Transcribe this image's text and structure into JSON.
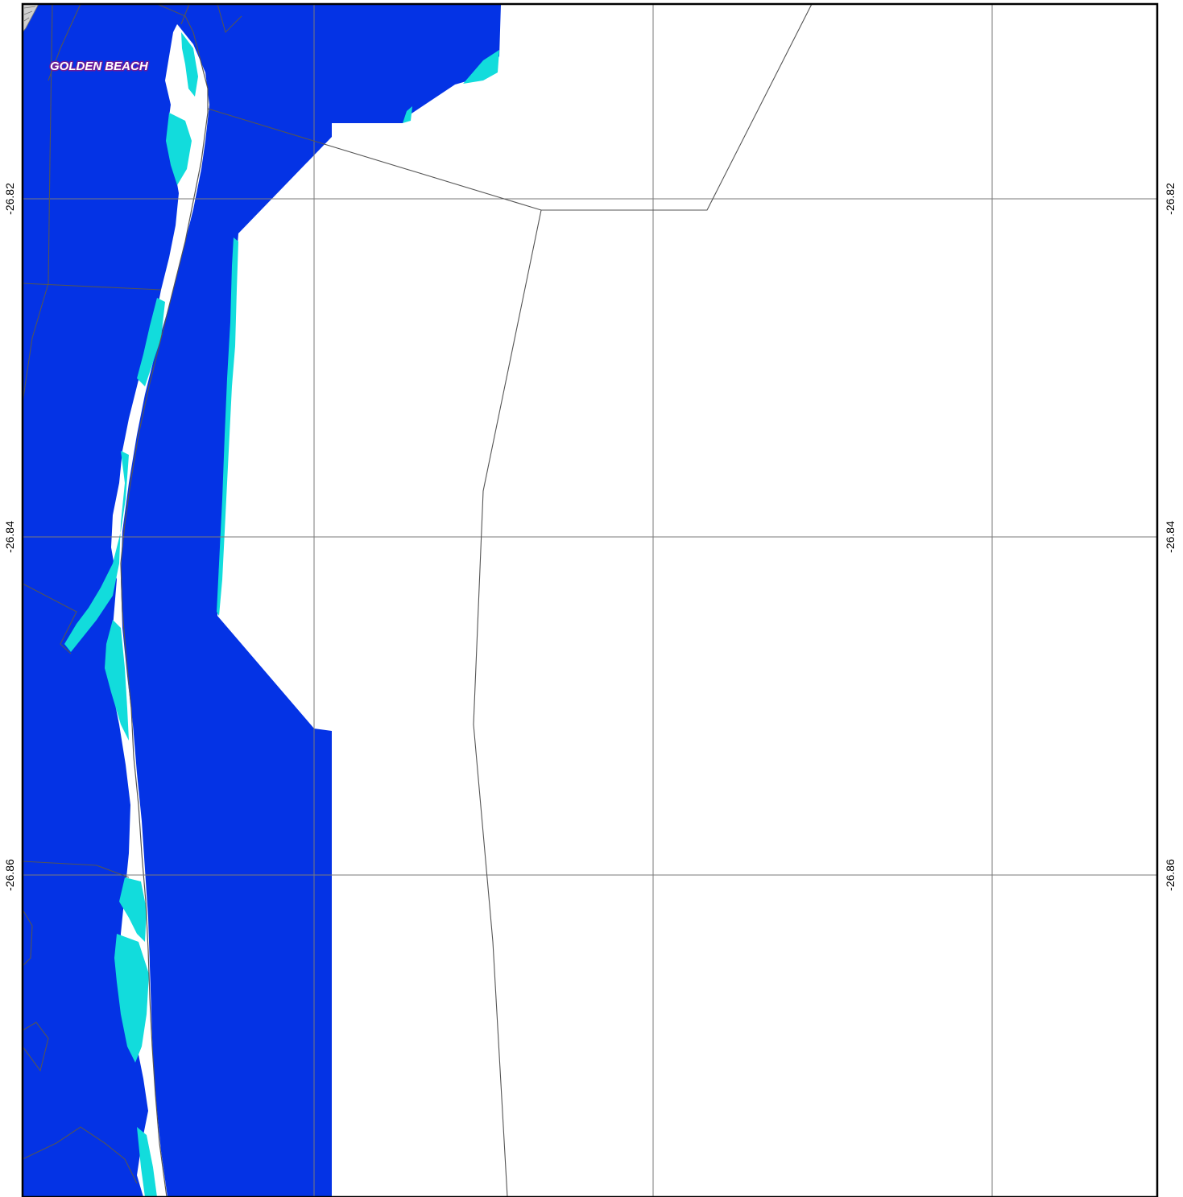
{
  "map": {
    "place_label": "GOLDEN BEACH",
    "latitude_labels": [
      "-26.82",
      "-26.84",
      "-26.86"
    ],
    "colors": {
      "deep_water": "#0433e5",
      "shallow_water": "#12dcdc",
      "land": "#ffffff",
      "grid_line": "#7a7a7a",
      "boundary_line": "#555555",
      "frame": "#000000",
      "label_outline": "#6a1b9a"
    }
  }
}
